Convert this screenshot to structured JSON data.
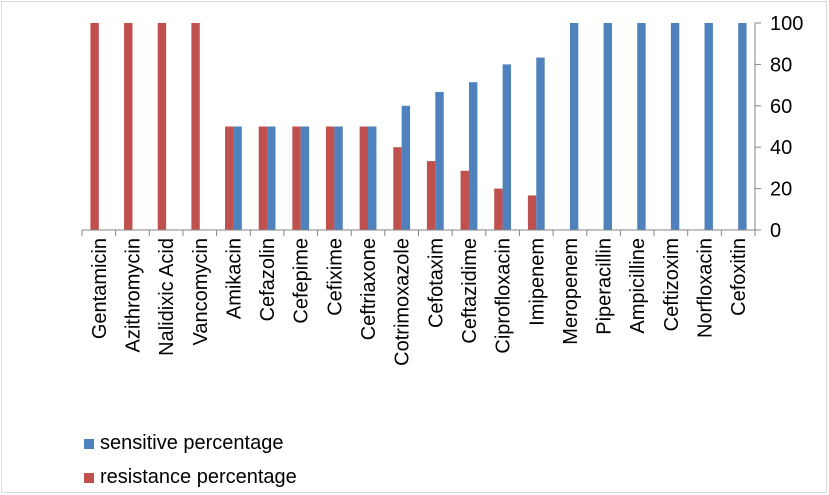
{
  "chart_data": {
    "type": "bar",
    "categories": [
      "Gentamicin",
      "Azithromycin",
      "Nalidixic Acid",
      "Vancomycin",
      "Amikacin",
      "Cefazolin",
      "Cefepime",
      "Cefixime",
      "Ceftriaxone",
      "Cotrimoxazole",
      "Cefotaxim",
      "Ceftazidime",
      "Ciprofloxacin",
      "Imipenem",
      "Meropenem",
      "Piperacillin",
      "Ampicilline",
      "Ceftizoxim",
      "Norfloxacin",
      "Cefoxitin"
    ],
    "series": [
      {
        "name": "sensitive percentage",
        "color": "#4f81bd",
        "values": [
          0,
          0,
          0,
          0,
          50,
          50,
          50,
          50,
          50,
          60,
          66.7,
          71.4,
          80,
          83.3,
          100,
          100,
          100,
          100,
          100,
          100
        ]
      },
      {
        "name": "resistance percentage",
        "color": "#c0504d",
        "values": [
          100,
          100,
          100,
          100,
          50,
          50,
          50,
          50,
          50,
          40,
          33.3,
          28.6,
          20,
          16.7,
          0,
          0,
          0,
          0,
          0,
          0
        ]
      }
    ],
    "ylim": [
      0,
      100
    ],
    "yticks": [
      "0",
      "20",
      "40",
      "60",
      "80",
      "100"
    ],
    "yaxis_side": "right",
    "legend_position": "bottom-left",
    "grid": false
  }
}
